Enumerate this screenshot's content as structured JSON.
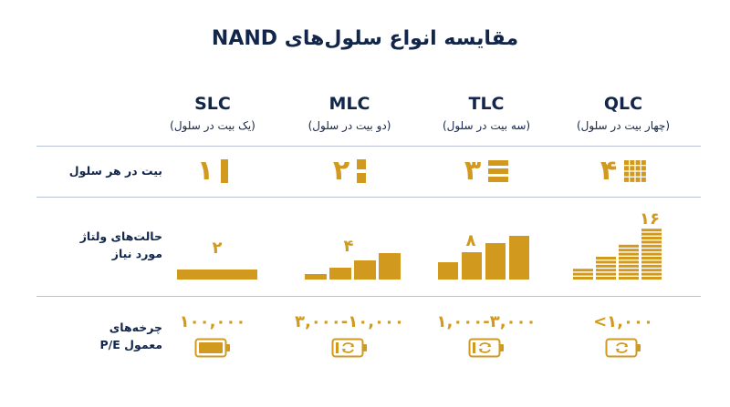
{
  "title": "مقایسه انواع سلول‌های NAND",
  "row_labels": {
    "bits": "بیت در هر سلول",
    "voltage_line1": "حالت‌های ولتاژ",
    "voltage_line2": "مورد نیاز",
    "cycles_line1": "چرخه‌های",
    "cycles_line2": "معمول P/E"
  },
  "colors": {
    "accent": "#d19a1f",
    "text": "#12254a",
    "divider": "#b9c4d6"
  },
  "columns": [
    {
      "name": "SLC",
      "sub": "(یک بیت در سلول)",
      "bits": "۱",
      "states": "۲",
      "state_count": 2,
      "cycles": "۱۰۰,۰۰۰",
      "battery_icon": "battery-full-icon"
    },
    {
      "name": "MLC",
      "sub": "(دو بیت در سلول)",
      "bits": "۲",
      "states": "۴",
      "state_count": 4,
      "cycles": "۳,۰۰۰-۱۰,۰۰۰",
      "battery_icon": "battery-cycle-icon"
    },
    {
      "name": "TLC",
      "sub": "(سه بیت در سلول)",
      "bits": "۳",
      "states": "۸",
      "state_count": 8,
      "cycles": "۱,۰۰۰-۳,۰۰۰",
      "battery_icon": "battery-cycle-icon"
    },
    {
      "name": "QLC",
      "sub": "(چهار بیت در سلول)",
      "bits": "۴",
      "states": "۱۶",
      "state_count": 16,
      "cycles": "<۱,۰۰۰",
      "battery_icon": "battery-cycle-icon"
    }
  ]
}
